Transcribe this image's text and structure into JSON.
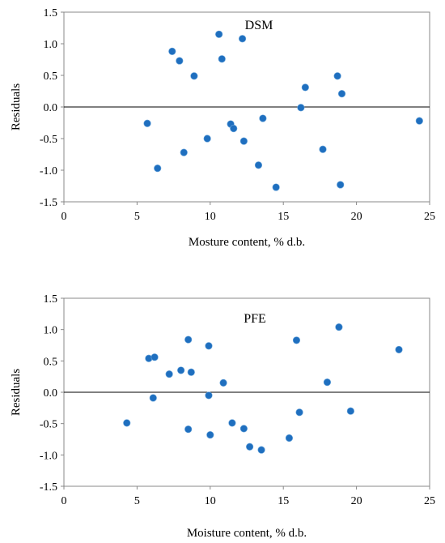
{
  "chart_data": [
    {
      "type": "scatter",
      "annotation": "DSM",
      "xlabel": "Mosture content, % d.b.",
      "ylabel": "Residuals",
      "xlim": [
        0,
        25
      ],
      "ylim": [
        -1.5,
        1.5
      ],
      "xticks": [
        0,
        5,
        10,
        15,
        20,
        25
      ],
      "yticks": [
        "-1.5",
        "-1.0",
        "-0.5",
        "0.0",
        "0.5",
        "1.0",
        "1.5"
      ],
      "marker_color": "#1f6fbf",
      "points": [
        [
          5.7,
          -0.26
        ],
        [
          6.4,
          -0.97
        ],
        [
          7.4,
          0.88
        ],
        [
          7.9,
          0.73
        ],
        [
          8.2,
          -0.72
        ],
        [
          8.9,
          0.49
        ],
        [
          9.8,
          -0.5
        ],
        [
          10.6,
          1.15
        ],
        [
          10.8,
          0.76
        ],
        [
          11.4,
          -0.27
        ],
        [
          11.6,
          -0.34
        ],
        [
          12.2,
          1.08
        ],
        [
          12.3,
          -0.54
        ],
        [
          13.3,
          -0.92
        ],
        [
          13.6,
          -0.18
        ],
        [
          14.5,
          -1.27
        ],
        [
          16.2,
          -0.01
        ],
        [
          16.5,
          0.31
        ],
        [
          17.7,
          -0.67
        ],
        [
          18.7,
          0.49
        ],
        [
          18.9,
          -1.23
        ],
        [
          19.0,
          0.21
        ],
        [
          24.3,
          -0.22
        ]
      ]
    },
    {
      "type": "scatter",
      "annotation": "PFE",
      "xlabel": "Moisture content, % d.b.",
      "ylabel": "Residuals",
      "xlim": [
        0,
        25
      ],
      "ylim": [
        -1.5,
        1.5
      ],
      "xticks": [
        0,
        5,
        10,
        15,
        20,
        25
      ],
      "yticks": [
        "-1.5",
        "-1.0",
        "-0.5",
        "0.0",
        "0.5",
        "1.0",
        "1.5"
      ],
      "marker_color": "#1f6fbf",
      "points": [
        [
          4.3,
          -0.49
        ],
        [
          5.8,
          0.54
        ],
        [
          6.1,
          -0.09
        ],
        [
          6.2,
          0.56
        ],
        [
          7.2,
          0.29
        ],
        [
          8.0,
          0.35
        ],
        [
          8.5,
          0.84
        ],
        [
          8.5,
          -0.59
        ],
        [
          8.7,
          0.32
        ],
        [
          9.9,
          0.74
        ],
        [
          9.9,
          -0.05
        ],
        [
          10.0,
          -0.68
        ],
        [
          10.9,
          0.15
        ],
        [
          11.5,
          -0.49
        ],
        [
          12.3,
          -0.58
        ],
        [
          12.7,
          -0.87
        ],
        [
          13.5,
          -0.92
        ],
        [
          15.4,
          -0.73
        ],
        [
          15.9,
          0.83
        ],
        [
          16.1,
          -0.32
        ],
        [
          18.0,
          0.16
        ],
        [
          18.8,
          1.04
        ],
        [
          19.6,
          -0.3
        ],
        [
          22.9,
          0.68
        ]
      ]
    }
  ]
}
